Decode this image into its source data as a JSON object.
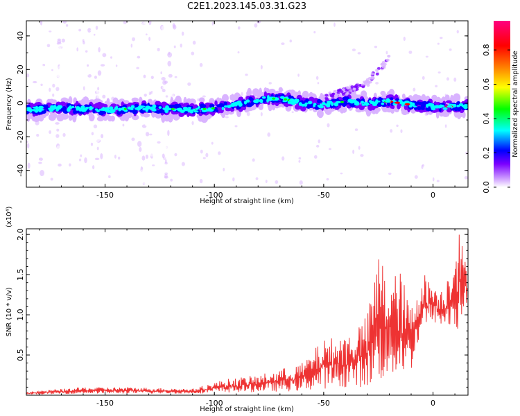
{
  "title": "C2E1.2023.145.03.31.G23",
  "chart_data": [
    {
      "type": "heatmap",
      "xlabel": "Height of straight line (km)",
      "ylabel": "Frequency (Hz)",
      "xlim": [
        -186,
        16
      ],
      "ylim": [
        -50,
        49
      ],
      "x_ticks": [
        -150,
        -100,
        -50,
        0
      ],
      "y_ticks": [
        -40,
        -20,
        0,
        20,
        40
      ],
      "colorbar": {
        "label": "Normalized spectral amplitude",
        "range": [
          0,
          0.97
        ],
        "ticks": [
          0.0,
          0.2,
          0.4,
          0.6,
          0.8
        ],
        "colormap": [
          "#ffffff",
          "#d9b3ff",
          "#7b00ff",
          "#0000ff",
          "#00ffff",
          "#00ff00",
          "#ffff00",
          "#ff8000",
          "#ff0000",
          "#ff0080"
        ]
      },
      "ridge": {
        "x": [
          -186,
          -170,
          -150,
          -130,
          -110,
          -100,
          -90,
          -80,
          -70,
          -60,
          -50,
          -40,
          -30,
          -20,
          -10,
          0,
          10,
          16
        ],
        "frequency": [
          -4,
          -3,
          -4,
          -3,
          -4,
          -3,
          -1,
          2,
          3,
          0,
          -1,
          1,
          0,
          1,
          -1,
          -2,
          -2,
          -2
        ]
      },
      "upper_branch": {
        "x": [
          -50,
          -40,
          -30,
          -25,
          -20
        ],
        "frequency": [
          3,
          7,
          12,
          20,
          27
        ]
      }
    },
    {
      "type": "line",
      "xlabel": "Height of straight line (km)",
      "ylabel": "SNR (10 * v/v)",
      "scale_label": "(x10⁴)",
      "xlim": [
        -186,
        16
      ],
      "ylim": [
        0,
        2.07
      ],
      "x_ticks": [
        -150,
        -100,
        -50,
        0
      ],
      "y_ticks": [
        0.5,
        1.0,
        1.5,
        2.0
      ],
      "series": [
        {
          "color": "#ee3333",
          "envelope": {
            "x": [
              -186,
              -160,
              -140,
              -110,
              -95,
              -80,
              -60,
              -50,
              -40,
              -30,
              -25,
              -20,
              -15,
              -10,
              -5,
              0,
              5,
              10,
              12,
              16
            ],
            "low": [
              0.01,
              0.02,
              0.02,
              0.02,
              0.03,
              0.04,
              0.05,
              0.08,
              0.1,
              0.1,
              0.15,
              0.2,
              0.25,
              0.3,
              0.8,
              0.9,
              0.85,
              0.75,
              0.8,
              1.2
            ],
            "high": [
              0.04,
              0.1,
              0.1,
              0.08,
              0.2,
              0.25,
              0.4,
              0.7,
              0.75,
              1.0,
              1.8,
              1.5,
              1.55,
              1.1,
              1.55,
              1.4,
              1.3,
              2.0,
              2.07,
              1.5
            ]
          }
        }
      ]
    }
  ]
}
